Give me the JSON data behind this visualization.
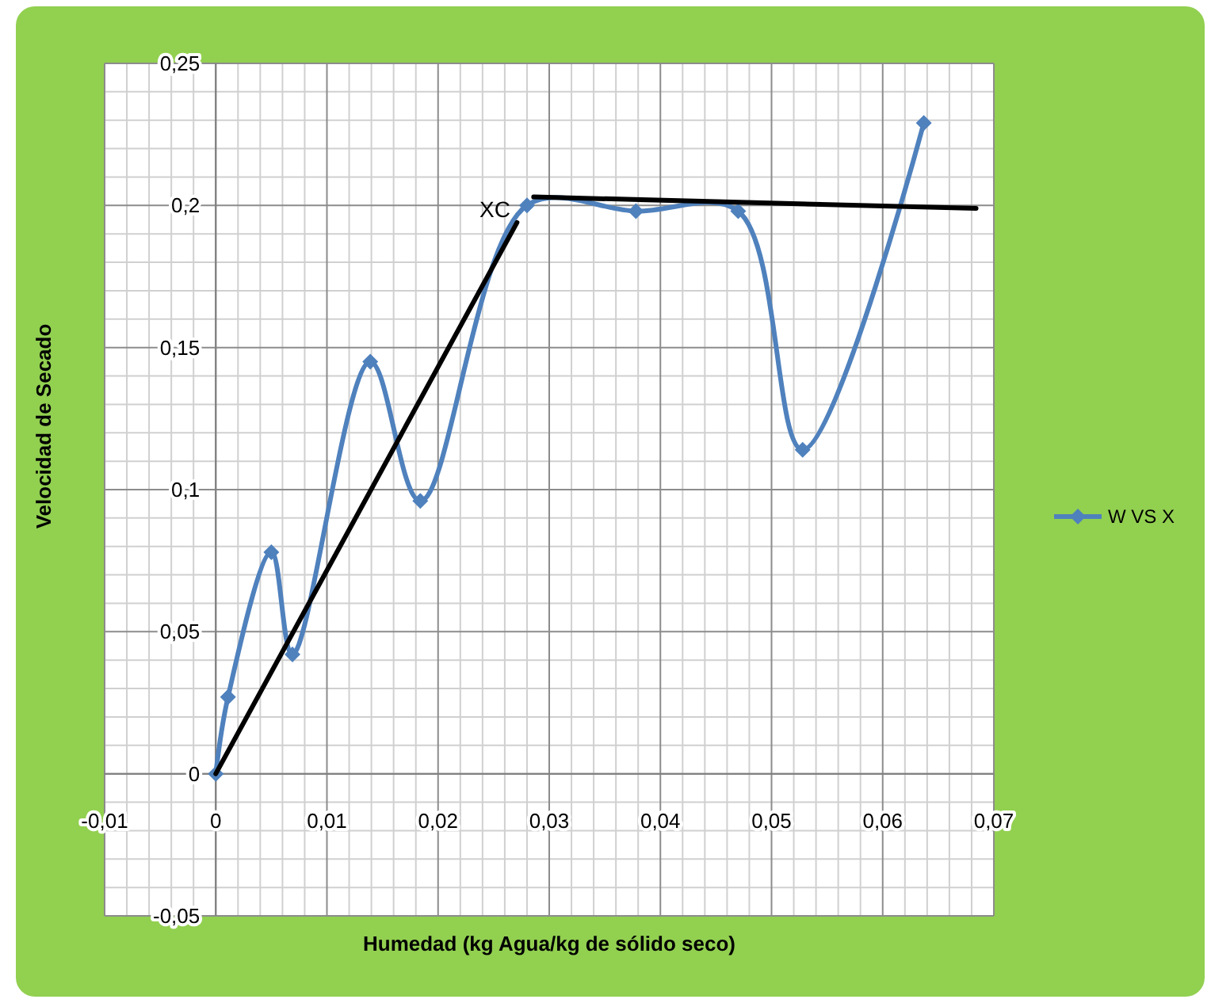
{
  "chart_data": {
    "type": "line",
    "xlabel": "Humedad (kg Agua/kg de sólido seco)",
    "ylabel": "Velocidad de Secado",
    "xlim": [
      -0.01,
      0.07
    ],
    "ylim": [
      -0.05,
      0.25
    ],
    "xticks": [
      {
        "value": -0.01,
        "label": "-0,01"
      },
      0,
      {
        "value": 0.01,
        "label": "0,01"
      },
      {
        "value": 0.02,
        "label": "0,02"
      },
      {
        "value": 0.03,
        "label": "0,03"
      },
      {
        "value": 0.04,
        "label": "0,04"
      },
      {
        "value": 0.05,
        "label": "0,05"
      },
      {
        "value": 0.06,
        "label": "0,06"
      },
      {
        "value": 0.07,
        "label": "0,07"
      }
    ],
    "yticks": [
      {
        "value": -0.05,
        "label": "-0,05"
      },
      0,
      {
        "value": 0.05,
        "label": "0,05"
      },
      {
        "value": 0.1,
        "label": "0,1"
      },
      {
        "value": 0.15,
        "label": "0,15"
      },
      {
        "value": 0.2,
        "label": "0,2"
      },
      {
        "value": 0.25,
        "label": "0,25"
      }
    ],
    "grid": true,
    "legend": "right",
    "marker": "diamond",
    "annotations": [
      "XC"
    ],
    "series": [
      {
        "name": "W VS X",
        "color": "#4f81bd",
        "x": [
          0,
          0.0011,
          0.005,
          0.0069,
          0.0139,
          0.0184,
          0.028,
          0.0378,
          0.047,
          0.0528,
          0.0637
        ],
        "values": [
          0,
          0.027,
          0.078,
          0.042,
          0.145,
          0.096,
          0.2,
          0.198,
          0.198,
          0.114,
          0.229
        ]
      },
      {
        "type": "line",
        "color": "#000000",
        "marker": "none",
        "x": [
          0,
          0.0271
        ],
        "values": [
          0,
          0.194
        ]
      },
      {
        "type": "line",
        "color": "#000000",
        "marker": "none",
        "x": [
          0.0286,
          0.0684
        ],
        "values": [
          0.203,
          0.199
        ]
      }
    ]
  }
}
